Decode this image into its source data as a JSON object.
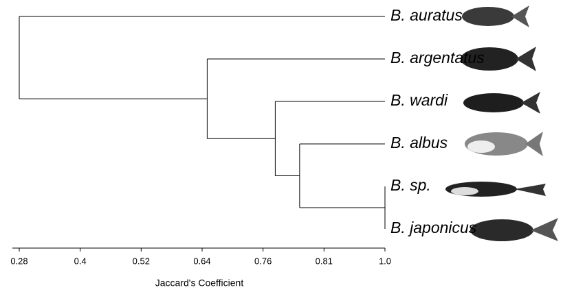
{
  "chart_data": {
    "type": "dendrogram",
    "leaves": [
      "B. auratus",
      "B. argentatus",
      "B. wardi",
      "B. albus",
      "B. sp.",
      "B. japonicus"
    ],
    "tree": {
      "height": 0.28,
      "children": [
        {
          "leaf": 0
        },
        {
          "height": 0.65,
          "children": [
            {
              "leaf": 1
            },
            {
              "height": 0.77,
              "children": [
                {
                  "leaf": 2
                },
                {
                  "height": 0.79,
                  "children": [
                    {
                      "leaf": 3
                    },
                    {
                      "height": 1.0,
                      "children": [
                        {
                          "leaf": 4
                        },
                        {
                          "leaf": 5
                        }
                      ]
                    }
                  ]
                }
              ]
            }
          ]
        }
      ]
    },
    "xticks": [
      0.28,
      0.4,
      0.52,
      0.64,
      0.76,
      0.81,
      {
        "value": 1,
        "label": "1.0"
      }
    ],
    "x_label": "Jaccard's Coefficient",
    "color": "#000000"
  }
}
